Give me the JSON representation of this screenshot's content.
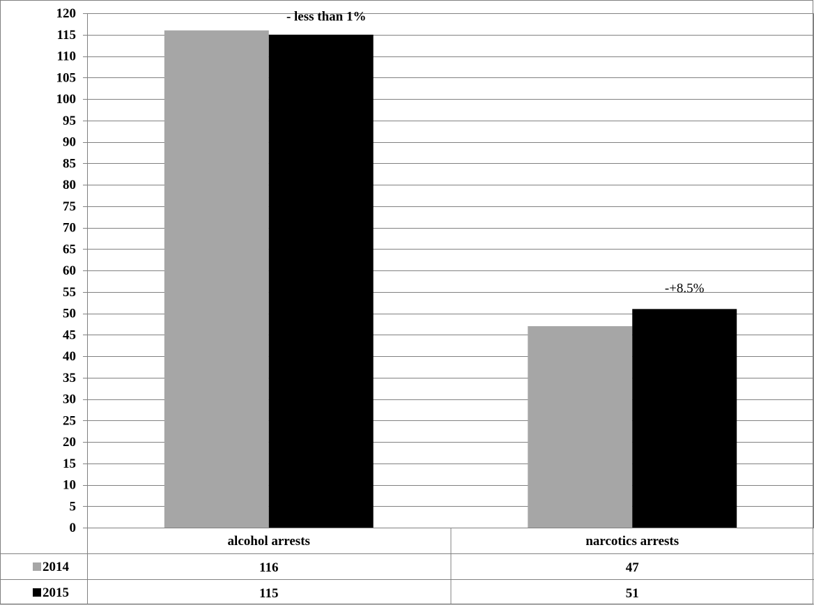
{
  "chart_data": {
    "type": "bar",
    "categories": [
      "alcohol arrests",
      "narcotics arrests"
    ],
    "series": [
      {
        "name": "2014",
        "values": [
          116,
          47
        ],
        "color": "#a6a6a6"
      },
      {
        "name": "2015",
        "values": [
          115,
          51
        ],
        "color": "#000000"
      }
    ],
    "ylim": [
      0,
      120
    ],
    "ytick_step": 5,
    "grid": true,
    "legend": "data table below chart",
    "annotations": [
      {
        "category": "alcohol arrests",
        "text": "- less than 1%"
      },
      {
        "category": "narcotics arrests",
        "text": "-+8.5%"
      }
    ],
    "table": {
      "rows": [
        {
          "marker_color": "#a6a6a6",
          "label": "2014",
          "values": [
            "116",
            "47"
          ]
        },
        {
          "marker_color": "#000000",
          "label": "2015",
          "values": [
            "115",
            "51"
          ]
        }
      ]
    }
  }
}
